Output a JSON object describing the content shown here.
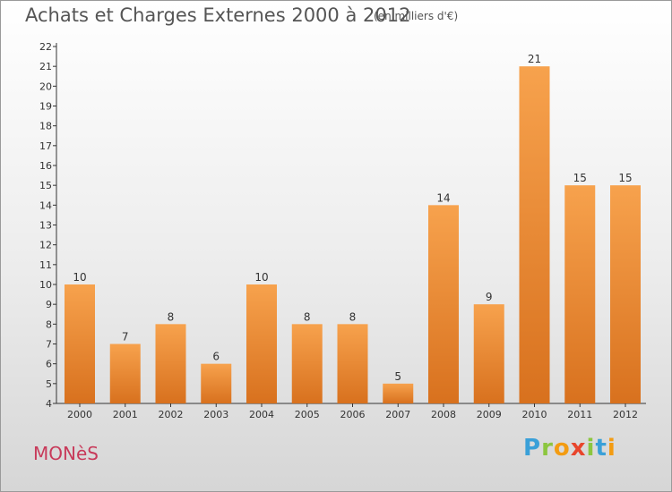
{
  "title": "Achats et Charges Externes 2000 à 2012",
  "unit": "(en milliers d'€)",
  "commune": "MONèS",
  "logo": {
    "letters": [
      "P",
      "r",
      "o",
      "x",
      "i",
      "t",
      "i"
    ],
    "colors": [
      "#3aa0d8",
      "#8cc63f",
      "#f39c12",
      "#e8452c",
      "#8cc63f",
      "#3aa0d8",
      "#f39c12"
    ]
  },
  "colors": {
    "bar_top": "#f7a24d",
    "bar_bottom": "#d8711e",
    "axis": "#333333",
    "label": "#333333",
    "commune": "#c83a5a"
  },
  "chart_data": {
    "type": "bar",
    "title": "Achats et Charges Externes 2000 à 2012",
    "subtitle": "(en milliers d'€)",
    "xlabel": "",
    "ylabel": "",
    "categories": [
      "2000",
      "2001",
      "2002",
      "2003",
      "2004",
      "2005",
      "2006",
      "2007",
      "2008",
      "2009",
      "2010",
      "2011",
      "2012"
    ],
    "values": [
      10,
      7,
      8,
      6,
      10,
      8,
      8,
      5,
      14,
      9,
      21,
      15,
      15
    ],
    "ylim": [
      4,
      22
    ],
    "yticks": [
      4,
      5,
      6,
      7,
      8,
      9,
      10,
      11,
      12,
      13,
      14,
      15,
      16,
      17,
      18,
      19,
      20,
      21,
      22
    ],
    "grid": false,
    "legend": "none"
  }
}
